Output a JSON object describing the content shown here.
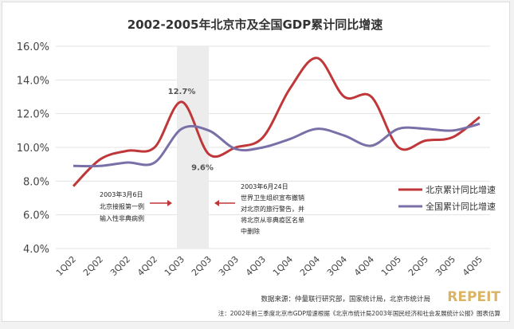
{
  "chart_data": {
    "type": "line",
    "title": "2002-2005年北京市及全国GDP累计同比增速",
    "categories": [
      "1Q02",
      "2Q02",
      "3Q02",
      "4Q02",
      "1Q03",
      "2Q03",
      "3Q03",
      "4Q03",
      "1Q04",
      "2Q04",
      "3Q04",
      "4Q04",
      "1Q05",
      "2Q05",
      "3Q05",
      "4Q05"
    ],
    "ylim": [
      4,
      16
    ],
    "yticks": [
      "4.0%",
      "6.0%",
      "8.0%",
      "10.0%",
      "12.0%",
      "14.0%",
      "16.0%"
    ],
    "grid": true,
    "legend_position": "right",
    "series": [
      {
        "name": "北京累计同比增速",
        "color": "#c0373a",
        "values": [
          7.7,
          9.3,
          9.8,
          10.0,
          12.7,
          9.6,
          10.0,
          10.6,
          13.5,
          15.3,
          13.0,
          13.0,
          10.0,
          10.4,
          10.6,
          11.8
        ]
      },
      {
        "name": "全国累计同比增速",
        "color": "#7b6fa8",
        "values": [
          8.9,
          8.9,
          9.1,
          9.1,
          11.1,
          11.0,
          9.9,
          10.0,
          10.5,
          11.1,
          10.7,
          10.1,
          11.1,
          11.1,
          11.0,
          11.4
        ]
      }
    ],
    "data_labels": [
      "12.7%",
      "9.6%"
    ],
    "shaded_period": [
      "1Q03",
      "2Q03"
    ],
    "annotations": {
      "left": [
        "2003年3月6日",
        "北京接报第一例",
        "输入性非典病例"
      ],
      "right": [
        "2003年6月24日",
        "世界卫生组织宣布撤销",
        "对北京的旅行警告，并",
        "将北京从非典疫区名单",
        "中删除"
      ]
    },
    "source": "数据来源：仲量联行研究部，国家统计局，北京市统计局",
    "note": "注：2002年前三季度北京市GDP增速根据《北京市统计局2003年国民经济和社会发展统计公报》图表估算",
    "watermark": "REPEIT"
  }
}
